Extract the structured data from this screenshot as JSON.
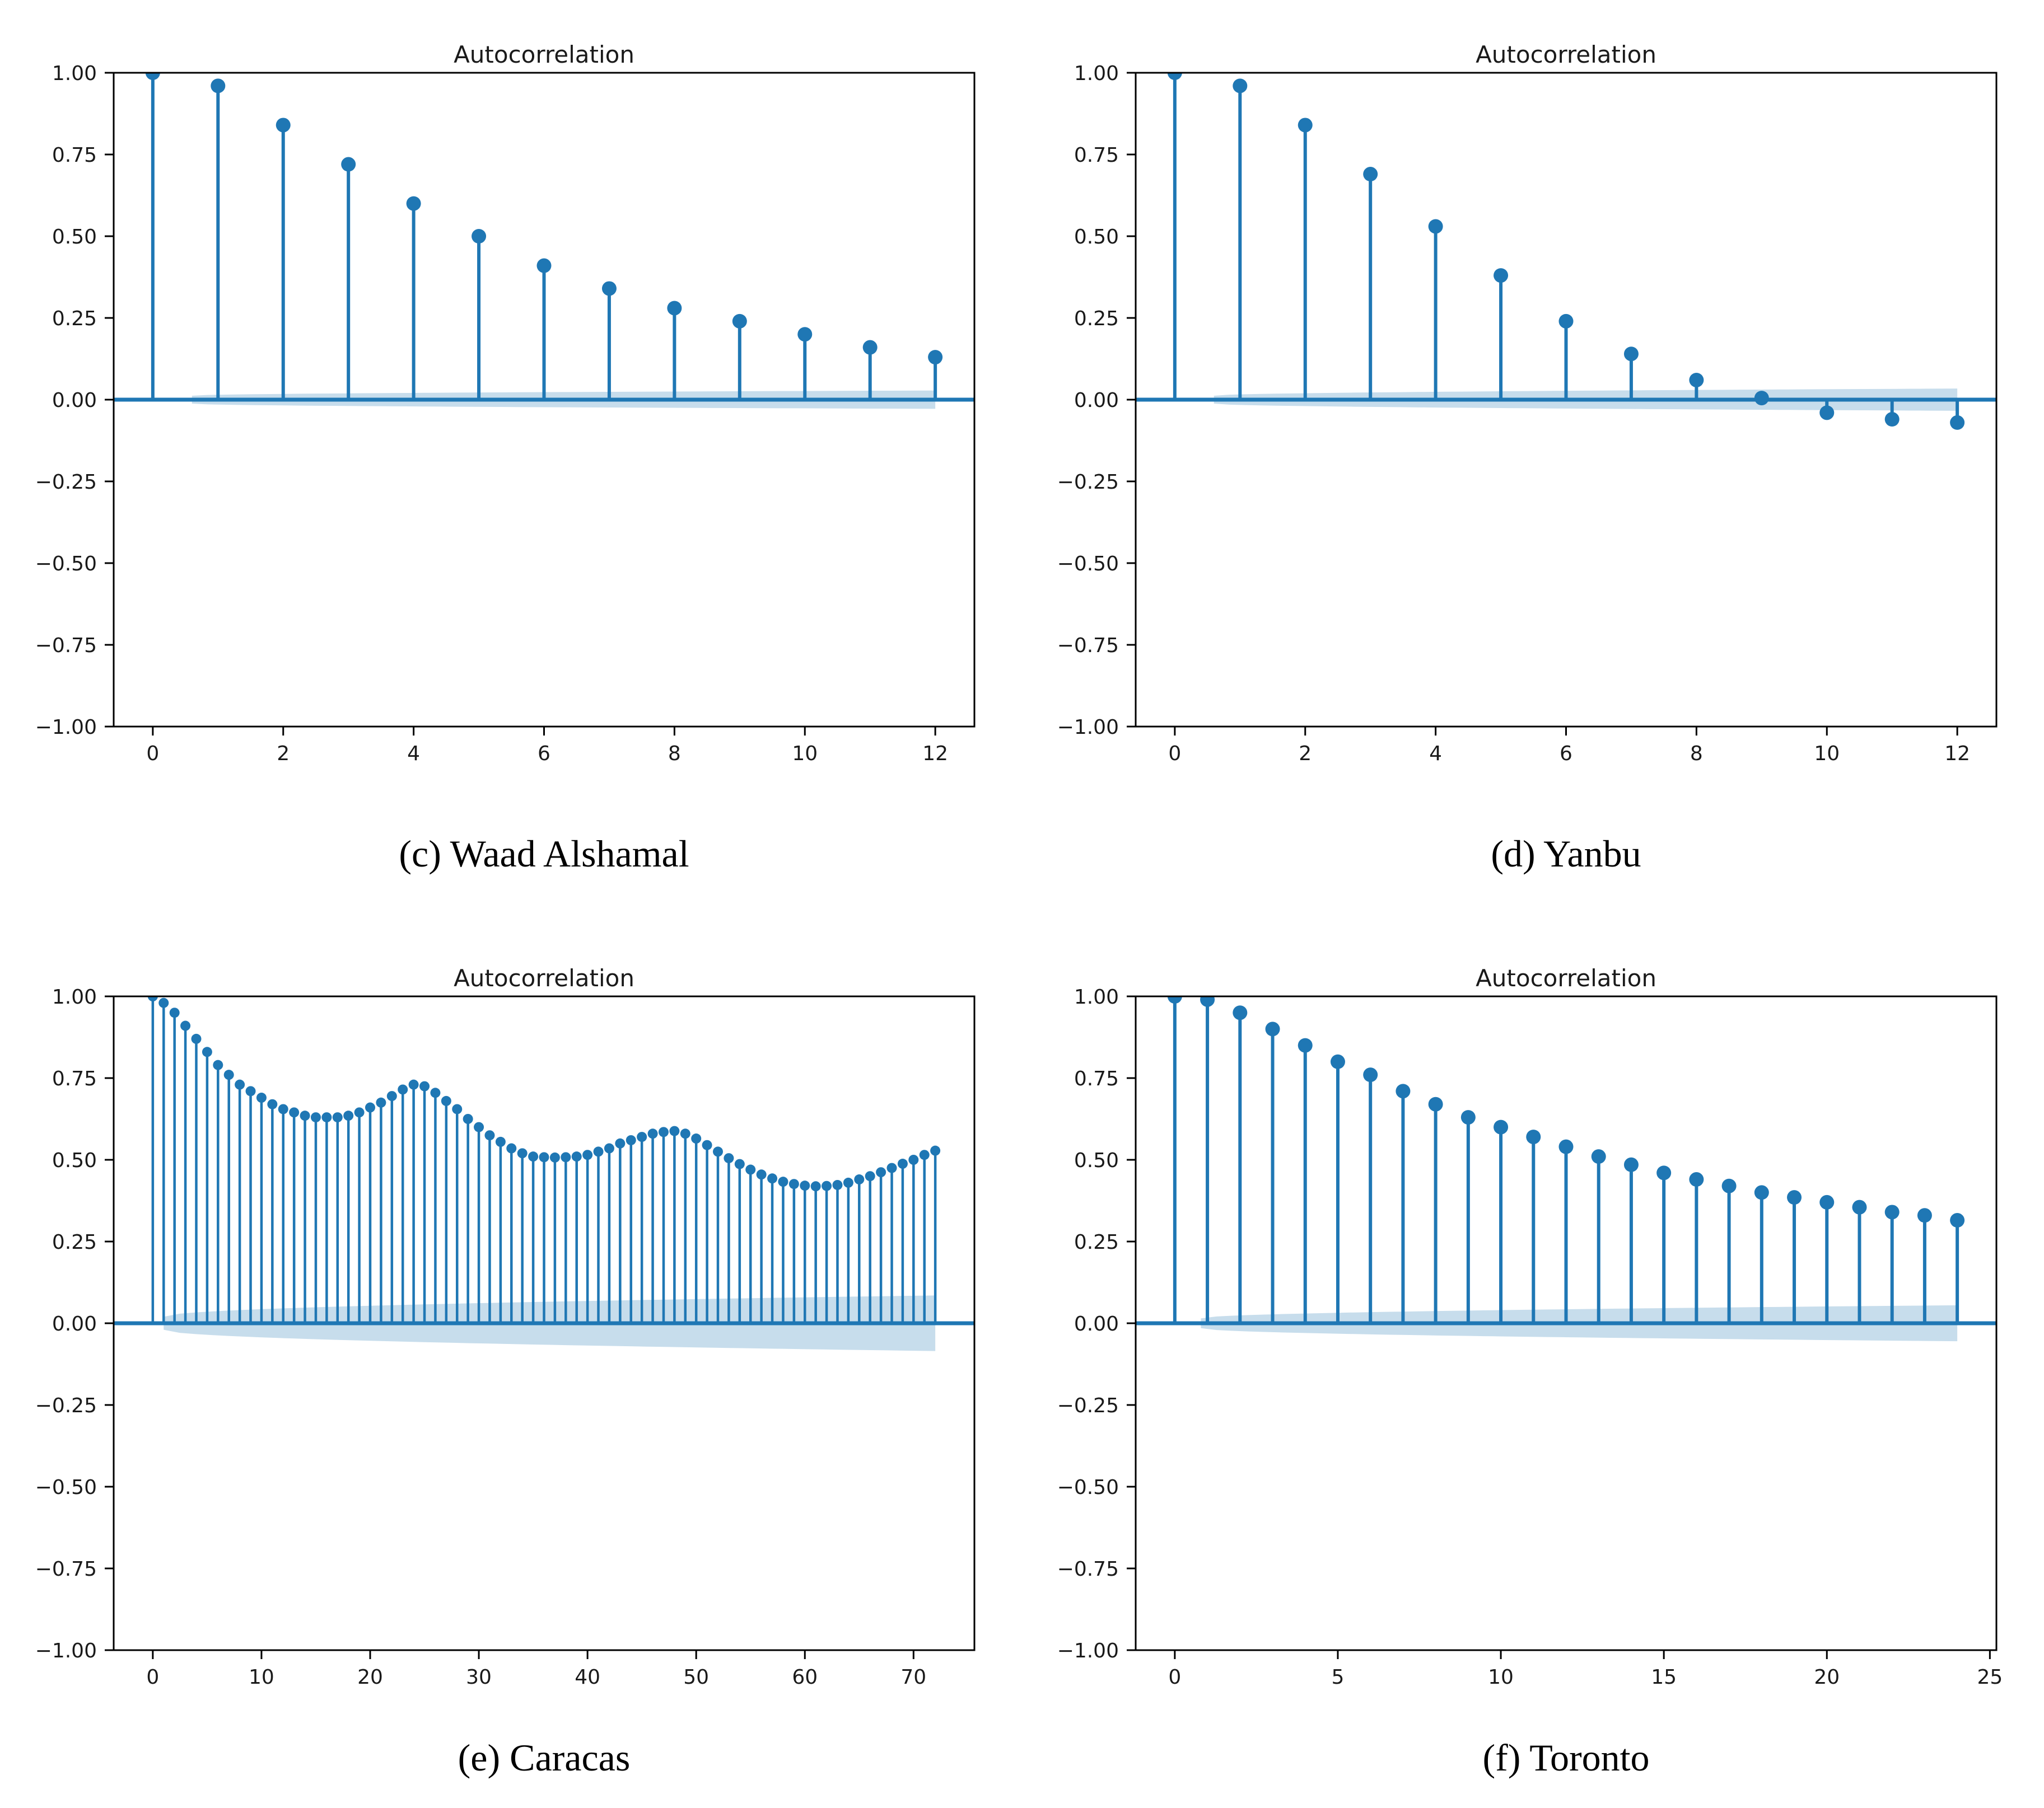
{
  "figure": {
    "background": "#ffffff",
    "accent_color": "#1f77b4",
    "band_color": "rgba(31, 119, 180, 0.25)",
    "axis_color": "#000000",
    "text_color": "#1a1a1a"
  },
  "panels": [
    {
      "id": "waad-alshamal",
      "caption": "(c) Waad Alshamal"
    },
    {
      "id": "yanbu",
      "caption": "(d) Yanbu"
    },
    {
      "id": "caracas",
      "caption": "(e) Caracas"
    },
    {
      "id": "toronto",
      "caption": "(f) Toronto"
    }
  ],
  "chart_data": [
    {
      "type": "stem",
      "title": "Autocorrelation",
      "caption": "(c) Waad Alshamal",
      "xlabel": "",
      "ylabel": "",
      "xlim": [
        -0.6,
        12.6
      ],
      "ylim": [
        -1.0,
        1.0
      ],
      "xticks": [
        0,
        2,
        4,
        6,
        8,
        10,
        12
      ],
      "ytick_labels": [
        "1.00",
        "0.75",
        "0.50",
        "0.25",
        "0.00",
        "−0.25",
        "−0.50",
        "−0.75",
        "−1.00"
      ],
      "grid": false,
      "legend": null,
      "x": [
        0,
        1,
        2,
        3,
        4,
        5,
        6,
        7,
        8,
        9,
        10,
        11,
        12
      ],
      "values": [
        1.0,
        0.96,
        0.84,
        0.72,
        0.6,
        0.5,
        0.41,
        0.34,
        0.28,
        0.24,
        0.2,
        0.16,
        0.13
      ],
      "conf_band": {
        "x_start": 0.6,
        "x_end": 12,
        "half_width_start": 0.012,
        "half_width_end": 0.028
      }
    },
    {
      "type": "stem",
      "title": "Autocorrelation",
      "caption": "(d) Yanbu",
      "xlabel": "",
      "ylabel": "",
      "xlim": [
        -0.6,
        12.6
      ],
      "ylim": [
        -1.0,
        1.0
      ],
      "xticks": [
        0,
        2,
        4,
        6,
        8,
        10,
        12
      ],
      "ytick_labels": [
        "1.00",
        "0.75",
        "0.50",
        "0.25",
        "0.00",
        "−0.25",
        "−0.50",
        "−0.75",
        "−1.00"
      ],
      "grid": false,
      "legend": null,
      "x": [
        0,
        1,
        2,
        3,
        4,
        5,
        6,
        7,
        8,
        9,
        10,
        11,
        12
      ],
      "values": [
        1.0,
        0.96,
        0.84,
        0.69,
        0.53,
        0.38,
        0.24,
        0.14,
        0.06,
        0.005,
        -0.04,
        -0.06,
        -0.07
      ],
      "conf_band": {
        "x_start": 0.6,
        "x_end": 12,
        "half_width_start": 0.012,
        "half_width_end": 0.034
      }
    },
    {
      "type": "stem",
      "title": "Autocorrelation",
      "caption": "(e) Caracas",
      "xlabel": "",
      "ylabel": "",
      "xlim": [
        -3.6,
        75.6
      ],
      "ylim": [
        -1.0,
        1.0
      ],
      "xticks": [
        0,
        10,
        20,
        30,
        40,
        50,
        60,
        70
      ],
      "ytick_labels": [
        "1.00",
        "0.75",
        "0.50",
        "0.25",
        "0.00",
        "−0.25",
        "−0.50",
        "−0.75",
        "−1.00"
      ],
      "grid": false,
      "legend": null,
      "x": [
        0,
        1,
        2,
        3,
        4,
        5,
        6,
        7,
        8,
        9,
        10,
        11,
        12,
        13,
        14,
        15,
        16,
        17,
        18,
        19,
        20,
        21,
        22,
        23,
        24,
        25,
        26,
        27,
        28,
        29,
        30,
        31,
        32,
        33,
        34,
        35,
        36,
        37,
        38,
        39,
        40,
        41,
        42,
        43,
        44,
        45,
        46,
        47,
        48,
        49,
        50,
        51,
        52,
        53,
        54,
        55,
        56,
        57,
        58,
        59,
        60,
        61,
        62,
        63,
        64,
        65,
        66,
        67,
        68,
        69,
        70,
        71,
        72
      ],
      "values": [
        1.0,
        0.98,
        0.95,
        0.91,
        0.87,
        0.83,
        0.79,
        0.76,
        0.73,
        0.71,
        0.69,
        0.67,
        0.655,
        0.645,
        0.635,
        0.63,
        0.63,
        0.63,
        0.635,
        0.645,
        0.66,
        0.675,
        0.695,
        0.715,
        0.73,
        0.725,
        0.705,
        0.68,
        0.655,
        0.625,
        0.6,
        0.575,
        0.555,
        0.535,
        0.52,
        0.51,
        0.508,
        0.507,
        0.508,
        0.51,
        0.515,
        0.525,
        0.535,
        0.55,
        0.56,
        0.57,
        0.58,
        0.585,
        0.588,
        0.58,
        0.565,
        0.545,
        0.525,
        0.505,
        0.487,
        0.47,
        0.455,
        0.443,
        0.433,
        0.426,
        0.421,
        0.419,
        0.42,
        0.423,
        0.43,
        0.44,
        0.45,
        0.462,
        0.475,
        0.488,
        0.5,
        0.515,
        0.528
      ],
      "conf_band": {
        "x_start": 1,
        "x_end": 72,
        "half_width_start": 0.02,
        "half_width_end": 0.085
      }
    },
    {
      "type": "stem",
      "title": "Autocorrelation",
      "caption": "(f) Toronto",
      "xlabel": "",
      "ylabel": "",
      "xlim": [
        -1.2,
        25.2
      ],
      "ylim": [
        -1.0,
        1.0
      ],
      "xticks": [
        0,
        5,
        10,
        15,
        20,
        25
      ],
      "ytick_labels": [
        "1.00",
        "0.75",
        "0.50",
        "0.25",
        "0.00",
        "−0.25",
        "−0.50",
        "−0.75",
        "−1.00"
      ],
      "grid": false,
      "legend": null,
      "x": [
        0,
        1,
        2,
        3,
        4,
        5,
        6,
        7,
        8,
        9,
        10,
        11,
        12,
        13,
        14,
        15,
        16,
        17,
        18,
        19,
        20,
        21,
        22,
        23,
        24
      ],
      "values": [
        1.0,
        0.99,
        0.95,
        0.9,
        0.85,
        0.8,
        0.76,
        0.71,
        0.67,
        0.63,
        0.6,
        0.57,
        0.54,
        0.51,
        0.485,
        0.46,
        0.44,
        0.42,
        0.4,
        0.385,
        0.37,
        0.355,
        0.34,
        0.33,
        0.315
      ],
      "conf_band": {
        "x_start": 0.8,
        "x_end": 24,
        "half_width_start": 0.015,
        "half_width_end": 0.055
      }
    }
  ]
}
